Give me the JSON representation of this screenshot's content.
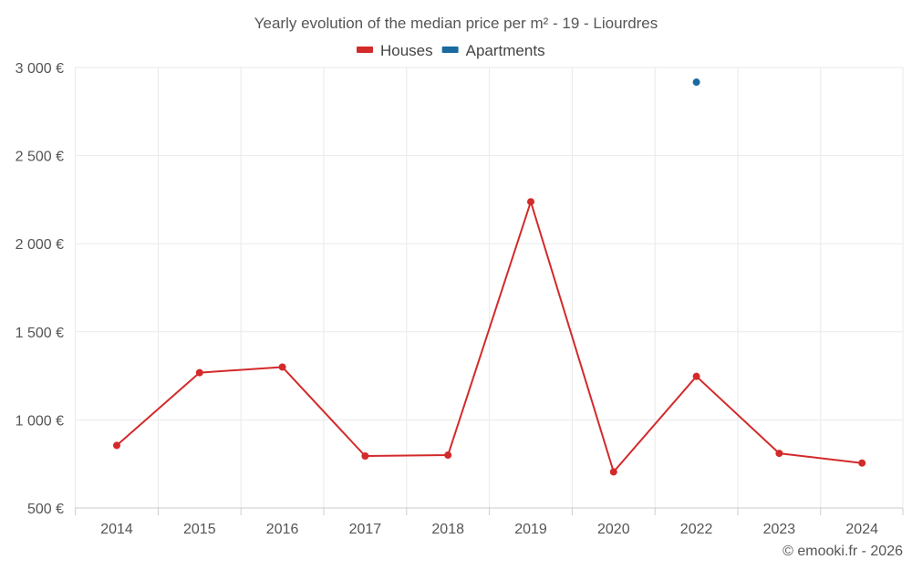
{
  "chart_data": {
    "type": "line",
    "title": "Yearly evolution of the median price per m² - 19 - Liourdres",
    "categories": [
      "2014",
      "2015",
      "2016",
      "2017",
      "2018",
      "2019",
      "2020",
      "2022",
      "2023",
      "2024"
    ],
    "series": [
      {
        "name": "Houses",
        "color": "#d32a2a",
        "values": [
          855,
          1268,
          1300,
          795,
          800,
          2238,
          705,
          1247,
          810,
          755
        ]
      },
      {
        "name": "Apartments",
        "color": "#1a6aa0",
        "values": [
          null,
          null,
          null,
          null,
          null,
          null,
          null,
          2917,
          null,
          null
        ]
      }
    ],
    "ylim": [
      500,
      3000
    ],
    "yticks": [
      500,
      1000,
      1500,
      2000,
      2500,
      3000
    ],
    "ytick_labels": [
      "500 €",
      "1 000 €",
      "1 500 €",
      "2 000 €",
      "2 500 €",
      "3 000 €"
    ],
    "xlabel": "",
    "ylabel": "",
    "grid": true,
    "legend": "top-center"
  },
  "credit": "© emooki.fr - 2026"
}
